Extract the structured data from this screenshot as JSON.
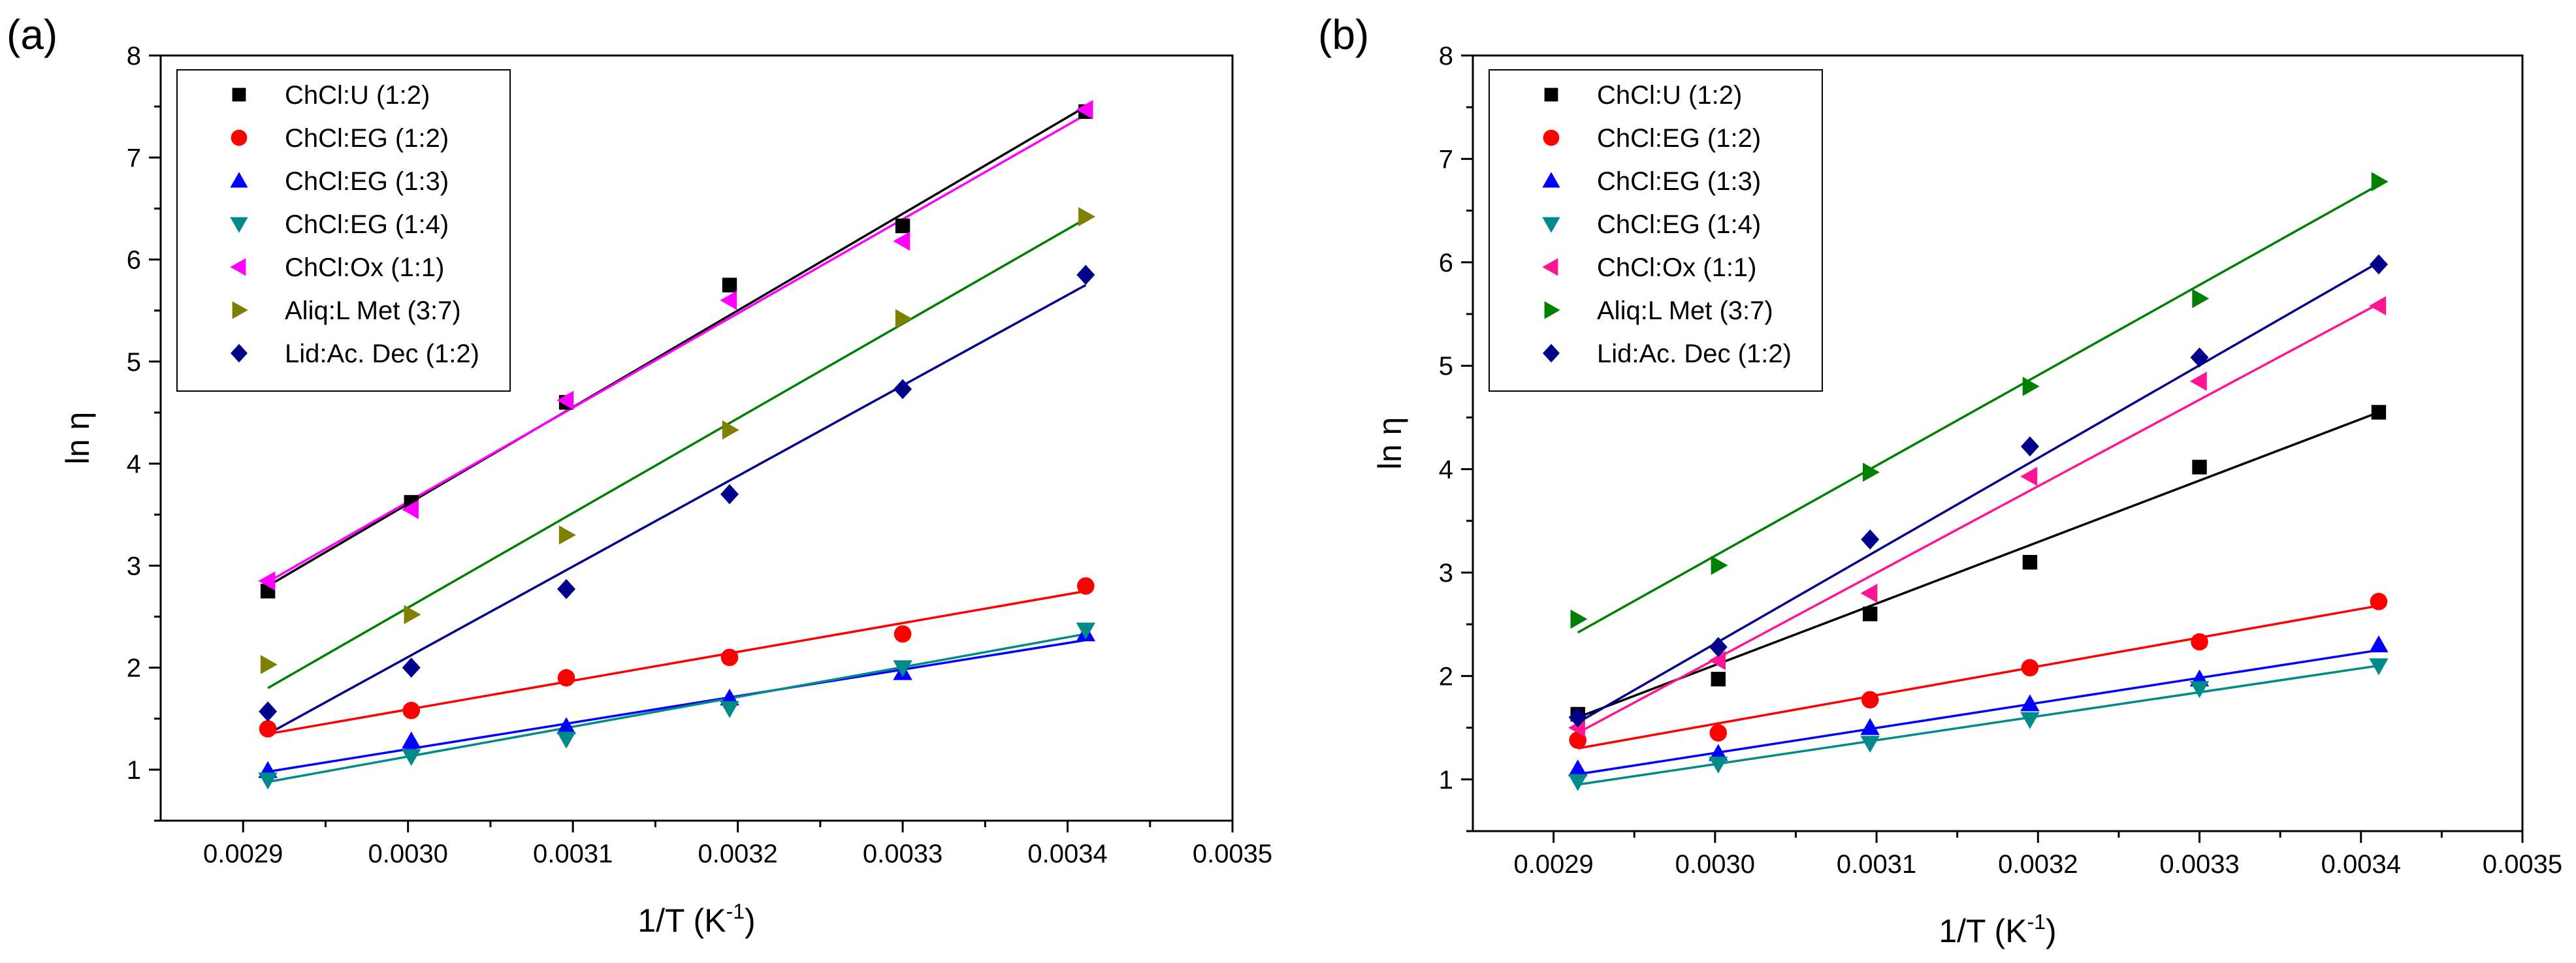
{
  "panels": [
    {
      "label": "(a)"
    },
    {
      "label": "(b)"
    }
  ],
  "chart_data": [
    {
      "type": "scatter",
      "panel_label": "(a)",
      "xlabel": "1/T (K",
      "xlabel_sup": "-1",
      "xlabel_close": ")",
      "ylabel": "ln η",
      "xlim": [
        0.00285,
        0.0035
      ],
      "ylim": [
        0.5,
        8
      ],
      "xticks": [
        0.0029,
        0.003,
        0.0031,
        0.0032,
        0.0033,
        0.0034,
        0.0035
      ],
      "xtick_labels": [
        "0.0029",
        "0.0030",
        "0.0031",
        "0.0032",
        "0.0033",
        "0.0034",
        "0.0035"
      ],
      "yticks": [
        1,
        2,
        3,
        4,
        5,
        6,
        7,
        8
      ],
      "ytick_labels": [
        "1",
        "2",
        "3",
        "4",
        "5",
        "6",
        "7",
        "8"
      ],
      "legend_position": "top-left",
      "x": [
        0.002915,
        0.003002,
        0.003096,
        0.003195,
        0.0033,
        0.003411
      ],
      "series": [
        {
          "name": "ChCl:U (1:2)",
          "color": "#000000",
          "marker": "square",
          "values": [
            2.75,
            3.62,
            4.6,
            5.75,
            6.33,
            7.45
          ],
          "fit": [
            2.8,
            7.5
          ]
        },
        {
          "name": "ChCl:EG (1:2)",
          "color": "#ff0000",
          "marker": "circle",
          "values": [
            1.4,
            1.58,
            1.9,
            2.1,
            2.33,
            2.8
          ],
          "fit": [
            1.35,
            2.75
          ]
        },
        {
          "name": "ChCl:EG (1:3)",
          "color": "#0000ff",
          "marker": "triangle-up",
          "values": [
            0.99,
            1.28,
            1.42,
            1.7,
            1.95,
            2.33
          ],
          "fit": [
            0.98,
            2.27
          ]
        },
        {
          "name": "ChCl:EG (1:4)",
          "color": "#008b8b",
          "marker": "triangle-down",
          "values": [
            0.9,
            1.13,
            1.3,
            1.6,
            2.0,
            2.37
          ],
          "fit": [
            0.88,
            2.33
          ]
        },
        {
          "name": "ChCl:Ox (1:1)",
          "color": "#ff00ff",
          "marker": "triangle-left",
          "values": [
            2.85,
            3.55,
            4.62,
            5.6,
            6.18,
            7.47
          ],
          "fit": [
            2.84,
            7.42
          ]
        },
        {
          "name": "Aliq:L Met (3:7)",
          "color": "#808000",
          "marker": "triangle-right",
          "values": [
            2.03,
            2.52,
            3.3,
            4.33,
            5.42,
            6.42
          ],
          "fit": [
            1.8,
            6.4
          ]
        },
        {
          "name": "Lid:Ac. Dec (1:2)",
          "color": "#00008b",
          "marker": "diamond",
          "values": [
            1.57,
            2.0,
            2.77,
            3.7,
            4.73,
            5.85
          ],
          "fit": [
            1.35,
            5.75
          ]
        }
      ],
      "line_colors": [
        "#000000",
        "#ff0000",
        "#0000ff",
        "#008b8b",
        "#ff00ff",
        "#008000",
        "#00008b"
      ]
    },
    {
      "type": "scatter",
      "panel_label": "(b)",
      "xlabel": "1/T (K",
      "xlabel_sup": "-1",
      "xlabel_close": ")",
      "ylabel": "ln η",
      "xlim": [
        0.00285,
        0.0035
      ],
      "ylim": [
        0.5,
        8
      ],
      "xticks": [
        0.0029,
        0.003,
        0.0031,
        0.0032,
        0.0033,
        0.0034,
        0.0035
      ],
      "xtick_labels": [
        "0.0029",
        "0.0030",
        "0.0031",
        "0.0032",
        "0.0033",
        "0.0034",
        "0.0035"
      ],
      "yticks": [
        1,
        2,
        3,
        4,
        5,
        6,
        7,
        8
      ],
      "ytick_labels": [
        "1",
        "2",
        "3",
        "4",
        "5",
        "6",
        "7",
        "8"
      ],
      "legend_position": "top-left",
      "x": [
        0.002915,
        0.003002,
        0.003096,
        0.003195,
        0.0033,
        0.003411
      ],
      "series": [
        {
          "name": "ChCl:U (1:2)",
          "color": "#000000",
          "marker": "square",
          "values": [
            1.63,
            1.97,
            2.6,
            3.1,
            4.02,
            4.55
          ],
          "fit": [
            1.6,
            4.55
          ]
        },
        {
          "name": "ChCl:EG (1:2)",
          "color": "#ff0000",
          "marker": "circle",
          "values": [
            1.38,
            1.45,
            1.77,
            2.08,
            2.33,
            2.72
          ],
          "fit": [
            1.3,
            2.68
          ]
        },
        {
          "name": "ChCl:EG (1:3)",
          "color": "#0000ff",
          "marker": "triangle-up",
          "values": [
            1.1,
            1.25,
            1.5,
            1.73,
            1.97,
            2.3
          ],
          "fit": [
            1.05,
            2.25
          ]
        },
        {
          "name": "ChCl:EG (1:4)",
          "color": "#008b8b",
          "marker": "triangle-down",
          "values": [
            0.98,
            1.15,
            1.35,
            1.58,
            1.88,
            2.1
          ],
          "fit": [
            0.95,
            2.1
          ]
        },
        {
          "name": "ChCl:Ox (1:1)",
          "color": "#ff1493",
          "marker": "triangle-left",
          "values": [
            1.5,
            2.15,
            2.8,
            3.93,
            4.85,
            5.58
          ],
          "fit": [
            1.45,
            5.6
          ]
        },
        {
          "name": "Aliq:L Met (3:7)",
          "color": "#008000",
          "marker": "triangle-right",
          "values": [
            2.55,
            3.07,
            3.97,
            4.8,
            5.65,
            6.78
          ],
          "fit": [
            2.42,
            6.75
          ]
        },
        {
          "name": "Lid:Ac. Dec (1:2)",
          "color": "#00008b",
          "marker": "diamond",
          "values": [
            1.6,
            2.28,
            3.32,
            4.22,
            5.08,
            5.98
          ],
          "fit": [
            1.55,
            6.0
          ]
        }
      ],
      "line_colors": [
        "#000000",
        "#ff0000",
        "#0000ff",
        "#008b8b",
        "#ff1493",
        "#008000",
        "#00008b"
      ]
    }
  ]
}
